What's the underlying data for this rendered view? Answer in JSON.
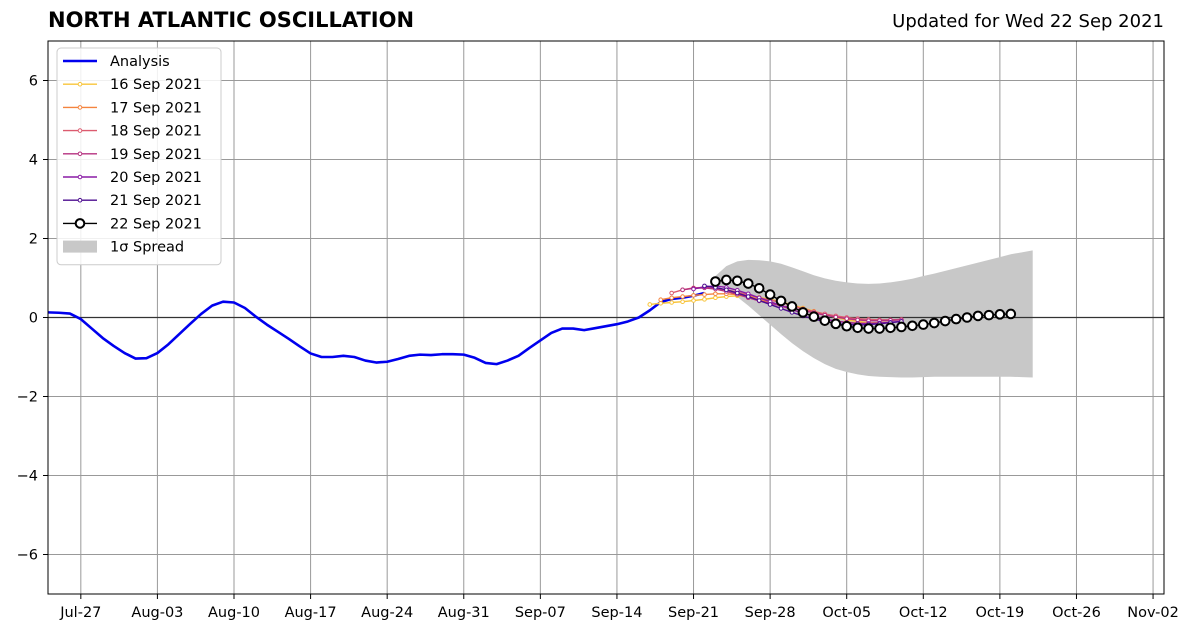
{
  "header": {
    "title": "NORTH ATLANTIC OSCILLATION",
    "updated": "Updated for Wed 22 Sep 2021"
  },
  "chart_data": {
    "type": "line",
    "title": "NORTH ATLANTIC OSCILLATION",
    "subtitle": "Updated for Wed 22 Sep 2021",
    "xlabel": "",
    "ylabel": "",
    "x_start": "2021-07-24",
    "xlim": [
      "2021-07-24",
      "2021-11-03"
    ],
    "ylim": [
      -7,
      7
    ],
    "grid": true,
    "legend_position": "top-left",
    "x_tick_labels": [
      "Jul-27",
      "Aug-03",
      "Aug-10",
      "Aug-17",
      "Aug-24",
      "Aug-31",
      "Sep-07",
      "Sep-14",
      "Sep-21",
      "Sep-28",
      "Oct-05",
      "Oct-12",
      "Oct-19",
      "Oct-26",
      "Nov-02"
    ],
    "x_tick_dates": [
      "2021-07-27",
      "2021-08-03",
      "2021-08-10",
      "2021-08-17",
      "2021-08-24",
      "2021-08-31",
      "2021-09-07",
      "2021-09-14",
      "2021-09-21",
      "2021-09-28",
      "2021-10-05",
      "2021-10-12",
      "2021-10-19",
      "2021-10-26",
      "2021-11-02"
    ],
    "y_ticks": [
      -6,
      -4,
      -2,
      0,
      2,
      4,
      6
    ],
    "y_tick_labels": [
      "−6",
      "−4",
      "−2",
      "0",
      "2",
      "4",
      "6"
    ],
    "series": [
      {
        "name": "Analysis",
        "color": "#0000ee",
        "marker": "none",
        "start": "2021-07-24",
        "values": [
          0.13,
          0.12,
          0.1,
          -0.04,
          -0.28,
          -0.52,
          -0.72,
          -0.9,
          -1.04,
          -1.03,
          -0.9,
          -0.68,
          -0.42,
          -0.16,
          0.09,
          0.3,
          0.4,
          0.38,
          0.24,
          0.02,
          -0.18,
          -0.36,
          -0.54,
          -0.73,
          -0.91,
          -1.0,
          -1.0,
          -0.97,
          -1.0,
          -1.09,
          -1.14,
          -1.12,
          -1.05,
          -0.97,
          -0.94,
          -0.95,
          -0.93,
          -0.93,
          -0.94,
          -1.02,
          -1.15,
          -1.18,
          -1.09,
          -0.97,
          -0.77,
          -0.58,
          -0.39,
          -0.28,
          -0.28,
          -0.32,
          -0.27,
          -0.22,
          -0.17,
          -0.1,
          0.0,
          0.18,
          0.39,
          0.47,
          0.5,
          0.55,
          0.62
        ]
      },
      {
        "name": "16 Sep 2021",
        "color": "#f8c43a",
        "marker": "dot",
        "start": "2021-09-17",
        "values": [
          0.33,
          0.36,
          0.38,
          0.4,
          0.43,
          0.46,
          0.5,
          0.53,
          0.55,
          0.54,
          0.51,
          0.46,
          0.4,
          0.32,
          0.24,
          0.16,
          0.08,
          0.0,
          -0.06,
          -0.1,
          -0.13,
          -0.14,
          -0.14
        ]
      },
      {
        "name": "17 Sep 2021",
        "color": "#f4843f",
        "marker": "dot",
        "start": "2021-09-18",
        "values": [
          0.45,
          0.5,
          0.53,
          0.56,
          0.58,
          0.6,
          0.6,
          0.58,
          0.53,
          0.46,
          0.38,
          0.29,
          0.2,
          0.11,
          0.03,
          -0.04,
          -0.09,
          -0.12,
          -0.14,
          -0.14,
          -0.13,
          -0.12
        ]
      },
      {
        "name": "18 Sep 2021",
        "color": "#dc5b6f",
        "marker": "dot",
        "start": "2021-09-19",
        "values": [
          0.62,
          0.7,
          0.75,
          0.76,
          0.74,
          0.7,
          0.64,
          0.57,
          0.5,
          0.44,
          0.38,
          0.3,
          0.22,
          0.15,
          0.09,
          0.04,
          0.0,
          -0.03,
          -0.05,
          -0.06,
          -0.06,
          -0.05
        ]
      },
      {
        "name": "19 Sep 2021",
        "color": "#b5307f",
        "marker": "dot",
        "start": "2021-09-20",
        "values": [
          0.7,
          0.74,
          0.75,
          0.72,
          0.66,
          0.59,
          0.5,
          0.42,
          0.36,
          0.3,
          0.24,
          0.18,
          0.12,
          0.06,
          0.01,
          -0.03,
          -0.06,
          -0.08,
          -0.08,
          -0.07,
          -0.06
        ]
      },
      {
        "name": "20 Sep 2021",
        "color": "#8a1ba6",
        "marker": "dot",
        "start": "2021-09-21",
        "values": [
          0.72,
          0.78,
          0.8,
          0.76,
          0.69,
          0.6,
          0.5,
          0.4,
          0.3,
          0.2,
          0.11,
          0.03,
          -0.04,
          -0.09,
          -0.13,
          -0.15,
          -0.15,
          -0.14,
          -0.12,
          -0.1
        ]
      },
      {
        "name": "21 Sep 2021",
        "color": "#4b0c8f",
        "marker": "dot",
        "start": "2021-09-22",
        "values": [
          0.8,
          0.76,
          0.7,
          0.62,
          0.53,
          0.43,
          0.33,
          0.23,
          0.13,
          0.04,
          -0.04,
          -0.1,
          -0.15,
          -0.18,
          -0.19,
          -0.18,
          -0.16,
          -0.13,
          -0.1
        ]
      },
      {
        "name": "22 Sep 2021",
        "color": "#000000",
        "marker": "circle",
        "start": "2021-09-23",
        "values": [
          0.91,
          0.95,
          0.93,
          0.86,
          0.74,
          0.58,
          0.42,
          0.28,
          0.13,
          0.02,
          -0.08,
          -0.16,
          -0.22,
          -0.26,
          -0.28,
          -0.28,
          -0.26,
          -0.24,
          -0.21,
          -0.18,
          -0.14,
          -0.09,
          -0.04,
          0.0,
          0.04,
          0.06,
          0.08,
          0.09
        ]
      }
    ],
    "spread": {
      "name": "1σ Spread",
      "color": "#c8c8c8",
      "start": "2021-09-23",
      "upper": [
        1.05,
        1.3,
        1.42,
        1.46,
        1.45,
        1.42,
        1.36,
        1.27,
        1.17,
        1.07,
        0.99,
        0.93,
        0.89,
        0.86,
        0.85,
        0.86,
        0.89,
        0.93,
        0.98,
        1.05,
        1.11,
        1.18,
        1.25,
        1.32,
        1.39,
        1.46,
        1.53,
        1.6,
        1.65,
        1.7
      ],
      "lower": [
        0.85,
        0.7,
        0.52,
        0.3,
        0.06,
        -0.18,
        -0.42,
        -0.65,
        -0.85,
        -1.03,
        -1.18,
        -1.3,
        -1.38,
        -1.44,
        -1.48,
        -1.5,
        -1.51,
        -1.52,
        -1.52,
        -1.51,
        -1.5,
        -1.5,
        -1.5,
        -1.5,
        -1.5,
        -1.5,
        -1.5,
        -1.5,
        -1.51,
        -1.52
      ]
    }
  }
}
